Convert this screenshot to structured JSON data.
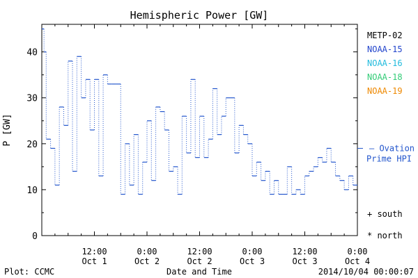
{
  "chart_data": {
    "type": "line",
    "title": "Hemispheric Power [GW]",
    "xlabel": "Date and Time",
    "ylabel": "P [GW]",
    "ylim": [
      0,
      46
    ],
    "xlim_hours": [
      0,
      72
    ],
    "yticks": [
      0,
      10,
      20,
      30,
      40
    ],
    "xticks": [
      {
        "hour": 12,
        "time": "12:00",
        "date": "Oct 1"
      },
      {
        "hour": 24,
        "time": "0:00",
        "date": "Oct 2"
      },
      {
        "hour": 36,
        "time": "12:00",
        "date": "Oct 2"
      },
      {
        "hour": 48,
        "time": "0:00",
        "date": "Oct 3"
      },
      {
        "hour": 60,
        "time": "12:00",
        "date": "Oct 3"
      },
      {
        "hour": 72,
        "time": "0:00",
        "date": "Oct 4"
      }
    ],
    "legend": [
      {
        "name": "METP-02",
        "color": "#000000"
      },
      {
        "name": "NOAA-15",
        "color": "#2244cc"
      },
      {
        "name": "NOAA-16",
        "color": "#22bbdd"
      },
      {
        "name": "NOAA-18",
        "color": "#33cc77"
      },
      {
        "name": "NOAA-19",
        "color": "#ee8800"
      }
    ],
    "series": [
      {
        "name": "NOAA-15",
        "color": "#2255cc",
        "points": [
          [
            0.0,
            45
          ],
          [
            0.5,
            40
          ],
          [
            1.0,
            21
          ],
          [
            2.0,
            19
          ],
          [
            3.0,
            11
          ],
          [
            4.0,
            28
          ],
          [
            5.0,
            24
          ],
          [
            6.0,
            38
          ],
          [
            7.0,
            14
          ],
          [
            8.0,
            39
          ],
          [
            9.0,
            30
          ],
          [
            10.0,
            34
          ],
          [
            11.0,
            23
          ],
          [
            12.0,
            34
          ],
          [
            13.0,
            13
          ],
          [
            14.0,
            35
          ],
          [
            15.0,
            33
          ],
          [
            16.0,
            33
          ],
          [
            17.0,
            33
          ],
          [
            18.0,
            9
          ],
          [
            19.0,
            20
          ],
          [
            20.0,
            11
          ],
          [
            21.0,
            22
          ],
          [
            22.0,
            9
          ],
          [
            23.0,
            16
          ],
          [
            24.0,
            25
          ],
          [
            25.0,
            12
          ],
          [
            26.0,
            28
          ],
          [
            27.0,
            27
          ],
          [
            28.0,
            23
          ],
          [
            29.0,
            14
          ],
          [
            30.0,
            15
          ],
          [
            31.0,
            9
          ],
          [
            32.0,
            26
          ],
          [
            33.0,
            18
          ],
          [
            34.0,
            34
          ],
          [
            35.0,
            17
          ],
          [
            36.0,
            26
          ],
          [
            37.0,
            17
          ],
          [
            38.0,
            21
          ],
          [
            39.0,
            32
          ],
          [
            40.0,
            22
          ],
          [
            41.0,
            26
          ],
          [
            42.0,
            30
          ],
          [
            43.0,
            30
          ],
          [
            44.0,
            18
          ],
          [
            45.0,
            24
          ],
          [
            46.0,
            22
          ],
          [
            47.0,
            20
          ],
          [
            48.0,
            13
          ],
          [
            49.0,
            16
          ],
          [
            50.0,
            12
          ],
          [
            51.0,
            14
          ],
          [
            52.0,
            9
          ],
          [
            53.0,
            12
          ],
          [
            54.0,
            9
          ],
          [
            55.0,
            9
          ],
          [
            56.0,
            15
          ],
          [
            57.0,
            9
          ],
          [
            58.0,
            10
          ],
          [
            59.0,
            9
          ],
          [
            60.0,
            13
          ],
          [
            61.0,
            14
          ],
          [
            62.0,
            15
          ],
          [
            63.0,
            17
          ],
          [
            64.0,
            16
          ],
          [
            65.0,
            19
          ],
          [
            66.0,
            16
          ],
          [
            67.0,
            13
          ],
          [
            68.0,
            12
          ],
          [
            69.0,
            10
          ],
          [
            70.0,
            13
          ],
          [
            71.0,
            11
          ],
          [
            72.0,
            11
          ]
        ]
      }
    ],
    "ovation": {
      "value": 19,
      "label_line1": "— Ovation",
      "label_line2": "Prime HPI",
      "color": "#2255cc"
    },
    "symbols": {
      "south": "+ south",
      "north": "* north"
    },
    "footer": {
      "left": "Plot: CCMC",
      "right": "2014/10/04 00:00:07"
    }
  }
}
